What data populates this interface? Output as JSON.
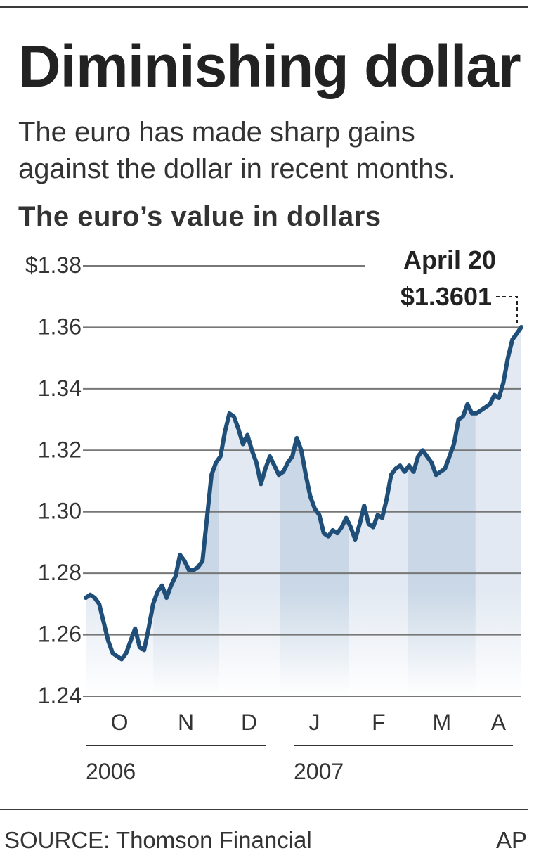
{
  "title": "Diminishing dollar",
  "subtitle": [
    "The euro has made sharp gains",
    "against the dollar in recent months."
  ],
  "source": "SOURCE: Thomson Financial",
  "credit": "AP",
  "colors": {
    "line": "#1f4e79",
    "band_dark": "#c9d7e6",
    "band_light": "#e2e9f2",
    "grid": "#777777"
  },
  "chart_data": {
    "type": "line",
    "title": "The euro’s value in dollars",
    "xlabel": "",
    "ylabel": "",
    "ylim": [
      1.24,
      1.38
    ],
    "y_ticks": [
      1.24,
      1.26,
      1.28,
      1.3,
      1.32,
      1.34,
      1.36,
      1.38
    ],
    "y_tick_labels": [
      "1.24",
      "1.26",
      "1.28",
      "1.30",
      "1.32",
      "1.34",
      "1.36",
      "$1.38"
    ],
    "months": [
      "O",
      "N",
      "D",
      "J",
      "F",
      "M",
      "A"
    ],
    "years": [
      "2006",
      "2007"
    ],
    "grid": true,
    "annotation": {
      "date_label": "April 20",
      "value_label": "$1.3601",
      "value": 1.3601
    },
    "series": [
      {
        "values": [
          1.272,
          1.273,
          1.272,
          1.27,
          1.264,
          1.258,
          1.254,
          1.253,
          1.252,
          1.254,
          1.258,
          1.262,
          1.256,
          1.255,
          1.262,
          1.27,
          1.274,
          1.276,
          1.272,
          1.276,
          1.279,
          1.286,
          1.284,
          1.281,
          1.281,
          1.282,
          1.284,
          1.298,
          1.312,
          1.316,
          1.318,
          1.326,
          1.332,
          1.331,
          1.327,
          1.322,
          1.325,
          1.32,
          1.316,
          1.309,
          1.314,
          1.318,
          1.315,
          1.312,
          1.313,
          1.316,
          1.318,
          1.324,
          1.32,
          1.312,
          1.305,
          1.301,
          1.299,
          1.293,
          1.292,
          1.294,
          1.293,
          1.295,
          1.298,
          1.295,
          1.291,
          1.296,
          1.302,
          1.296,
          1.295,
          1.299,
          1.298,
          1.304,
          1.312,
          1.314,
          1.315,
          1.313,
          1.315,
          1.313,
          1.318,
          1.32,
          1.318,
          1.316,
          1.312,
          1.313,
          1.314,
          1.318,
          1.322,
          1.33,
          1.331,
          1.335,
          1.332,
          1.332,
          1.333,
          1.334,
          1.335,
          1.338,
          1.337,
          1.342,
          1.35,
          1.356,
          1.358,
          1.3601
        ]
      }
    ]
  }
}
